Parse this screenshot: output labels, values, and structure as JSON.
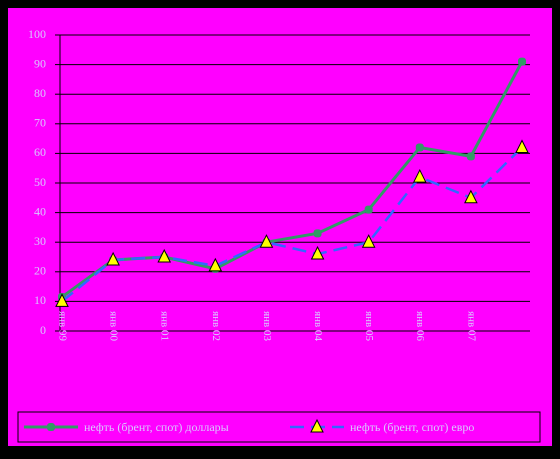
{
  "chart_data": {
    "type": "line",
    "categories": [
      "янв 99",
      "янв 00",
      "янв 01",
      "янв 02",
      "янв 03",
      "янв 04",
      "янв 05",
      "янв 06",
      "янв 07",
      null
    ],
    "series": [
      {
        "name": "нефть (брент, спот) доллары",
        "color": "#339966",
        "values": [
          11.5,
          24,
          25,
          21,
          30,
          33,
          41,
          62,
          59,
          91
        ]
      },
      {
        "name": "нефть (брент, спот) евро",
        "color": "#3366ff",
        "values": [
          10,
          24,
          25,
          22,
          30,
          26,
          30,
          52,
          45,
          62
        ]
      }
    ],
    "ylim": [
      0,
      100
    ],
    "yticks": [
      0,
      10,
      20,
      30,
      40,
      50,
      60,
      70,
      80,
      90,
      100
    ],
    "grid": true
  }
}
